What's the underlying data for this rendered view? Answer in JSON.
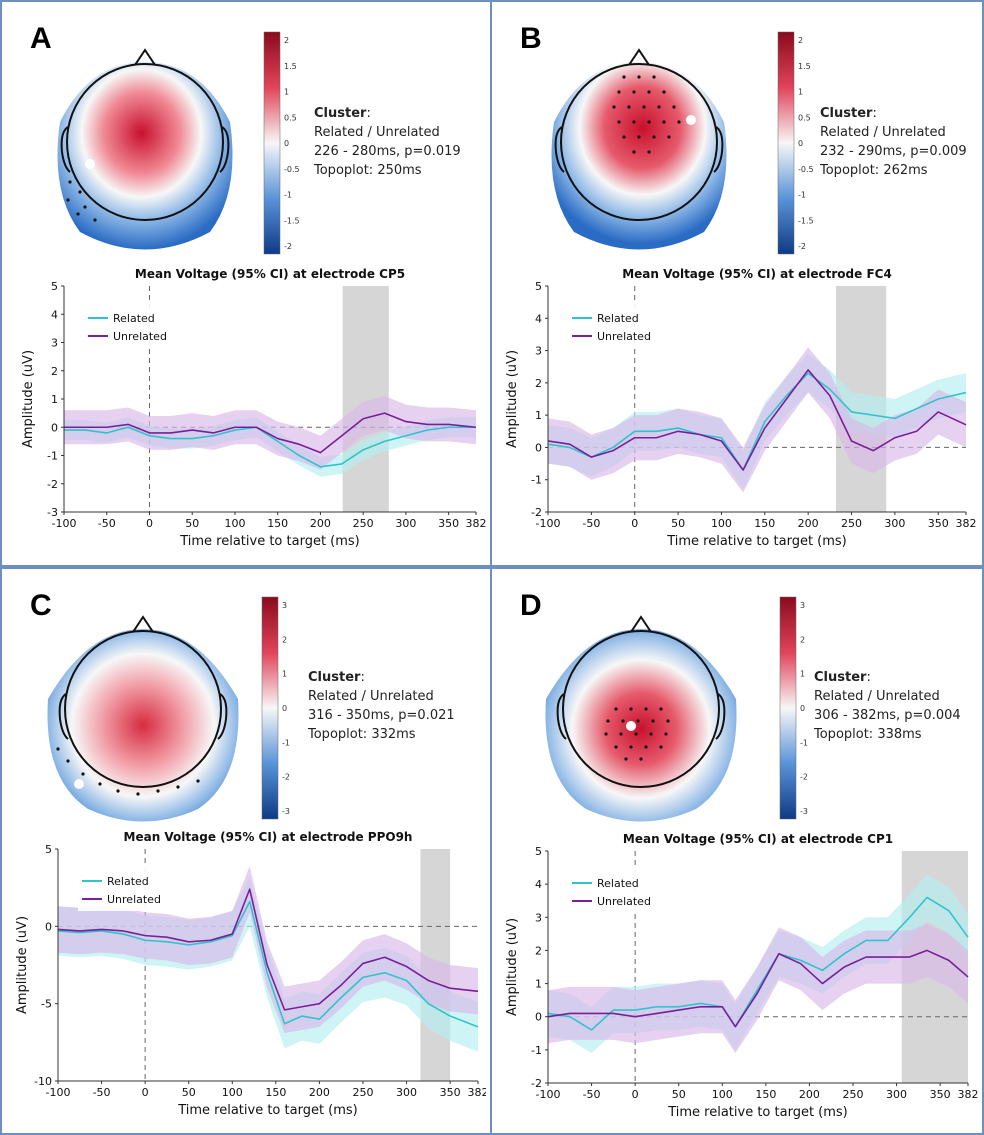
{
  "colors": {
    "related": "#2fc4cc",
    "unrelated": "#7a1f9a",
    "related_ci": "#b6eef0",
    "unrelated_ci": "#d9b8e8",
    "cluster_window": "#d6d6d6",
    "panel_border": "#6b8fc0"
  },
  "panels": [
    {
      "letter": "A",
      "cluster": {
        "title": "Cluster",
        "colon": ":",
        "condition": "Related / Unrelated",
        "window": "226 - 280ms, p=0.019",
        "topoplot": "Topoplot: 250ms"
      },
      "colorbar_ticks": [
        "2",
        "1.5",
        "1",
        "0.5",
        "0",
        "-0.5",
        "-1",
        "-1.5",
        "-2"
      ],
      "chart_data": {
        "type": "line",
        "title": "Mean Voltage (95% CI) at electrode CP5",
        "xlabel": "Time relative to target (ms)",
        "ylabel": "Amplitude (uV)",
        "xlim": [
          -100,
          382
        ],
        "ylim": [
          -3,
          5
        ],
        "xticks": [
          "-100",
          "-50",
          "0",
          "50",
          "100",
          "150",
          "200",
          "250",
          "300",
          "350",
          "382"
        ],
        "yticks": [
          "5",
          "4",
          "3",
          "2",
          "1",
          "0",
          "-1",
          "-2",
          "-3"
        ],
        "shaded_window": [
          226,
          280
        ],
        "legend_position": "top-left",
        "x": [
          -100,
          -75,
          -50,
          -25,
          0,
          25,
          50,
          75,
          100,
          125,
          150,
          175,
          200,
          225,
          250,
          275,
          300,
          325,
          350,
          382
        ],
        "series": [
          {
            "name": "Related",
            "values": [
              -0.1,
              -0.1,
              -0.2,
              0.0,
              -0.3,
              -0.4,
              -0.4,
              -0.3,
              -0.1,
              0.0,
              -0.5,
              -1.0,
              -1.4,
              -1.3,
              -0.8,
              -0.5,
              -0.3,
              -0.1,
              0.0,
              0.0
            ],
            "ci": 0.35
          },
          {
            "name": "Unrelated",
            "values": [
              0.0,
              0.0,
              0.0,
              0.1,
              -0.2,
              -0.2,
              -0.1,
              -0.2,
              0.0,
              0.0,
              -0.4,
              -0.6,
              -0.9,
              -0.3,
              0.3,
              0.5,
              0.2,
              0.1,
              0.1,
              0.0
            ],
            "ci": 0.6
          }
        ]
      }
    },
    {
      "letter": "B",
      "cluster": {
        "title": "Cluster",
        "colon": ":",
        "condition": "Related / Unrelated",
        "window": "232 - 290ms, p=0.009",
        "topoplot": "Topoplot: 262ms"
      },
      "colorbar_ticks": [
        "2",
        "1.5",
        "1",
        "0.5",
        "0",
        "-0.5",
        "-1",
        "-1.5",
        "-2"
      ],
      "chart_data": {
        "type": "line",
        "title": "Mean Voltage (95% CI) at electrode FC4",
        "xlabel": "Time relative to target (ms)",
        "ylabel": "Amplitude (uV)",
        "xlim": [
          -100,
          382
        ],
        "ylim": [
          -2,
          5
        ],
        "xticks": [
          "-100",
          "-50",
          "0",
          "50",
          "100",
          "150",
          "200",
          "250",
          "300",
          "350",
          "382"
        ],
        "yticks": [
          "5",
          "4",
          "3",
          "2",
          "1",
          "0",
          "-1",
          "-2"
        ],
        "shaded_window": [
          232,
          290
        ],
        "legend_position": "top-left",
        "x": [
          -100,
          -75,
          -50,
          -25,
          0,
          25,
          50,
          75,
          100,
          125,
          150,
          175,
          200,
          225,
          250,
          275,
          300,
          325,
          350,
          382
        ],
        "series": [
          {
            "name": "Related",
            "values": [
              0.1,
              0.0,
              -0.3,
              0.0,
              0.5,
              0.5,
              0.6,
              0.4,
              0.3,
              -0.7,
              0.8,
              1.6,
              2.3,
              1.8,
              1.1,
              1.0,
              0.9,
              1.2,
              1.5,
              1.7
            ],
            "ci": 0.6
          },
          {
            "name": "Unrelated",
            "values": [
              0.2,
              0.1,
              -0.3,
              -0.1,
              0.3,
              0.3,
              0.5,
              0.4,
              0.2,
              -0.7,
              0.6,
              1.5,
              2.4,
              1.6,
              0.2,
              -0.1,
              0.3,
              0.5,
              1.1,
              0.7
            ],
            "ci": 0.7
          }
        ]
      }
    },
    {
      "letter": "C",
      "cluster": {
        "title": "Cluster",
        "colon": ":",
        "condition": "Related / Unrelated",
        "window": "316 - 350ms, p=0.021",
        "topoplot": "Topoplot: 332ms"
      },
      "colorbar_ticks": [
        "3",
        "2",
        "1",
        "0",
        "-1",
        "-2",
        "-3"
      ],
      "chart_data": {
        "type": "line",
        "title": "Mean Voltage (95% CI) at electrode PPO9h",
        "xlabel": "Time relative to target (ms)",
        "ylabel": "Amplitude (uV)",
        "xlim": [
          -100,
          382
        ],
        "ylim": [
          -10,
          5
        ],
        "xticks": [
          "-100",
          "-50",
          "0",
          "50",
          "100",
          "150",
          "200",
          "250",
          "300",
          "350",
          "382"
        ],
        "yticks": [
          "5",
          "0",
          "-5",
          "-10"
        ],
        "shaded_window": [
          316,
          350
        ],
        "legend_position": "top-left",
        "x": [
          -100,
          -75,
          -50,
          -25,
          0,
          25,
          50,
          75,
          100,
          120,
          140,
          160,
          180,
          200,
          225,
          250,
          275,
          300,
          325,
          350,
          382
        ],
        "series": [
          {
            "name": "Related",
            "values": [
              -0.3,
              -0.4,
              -0.3,
              -0.5,
              -0.9,
              -1.0,
              -1.2,
              -1.0,
              -0.6,
              1.6,
              -3.0,
              -6.3,
              -5.8,
              -6.0,
              -4.6,
              -3.3,
              -3.0,
              -3.5,
              -5.0,
              -5.8,
              -6.5
            ],
            "ci": 1.6
          },
          {
            "name": "Unrelated",
            "values": [
              -0.2,
              -0.3,
              -0.2,
              -0.3,
              -0.6,
              -0.7,
              -1.0,
              -0.9,
              -0.5,
              2.4,
              -2.5,
              -5.4,
              -5.2,
              -5.0,
              -3.8,
              -2.4,
              -2.0,
              -2.6,
              -3.5,
              -4.0,
              -4.2
            ],
            "ci": 1.5
          }
        ]
      }
    },
    {
      "letter": "D",
      "cluster": {
        "title": "Cluster",
        "colon": ":",
        "condition": "Related / Unrelated",
        "window": "306 - 382ms, p=0.004",
        "topoplot": "Topoplot: 338ms"
      },
      "colorbar_ticks": [
        "3",
        "2",
        "1",
        "0",
        "-1",
        "-2",
        "-3"
      ],
      "chart_data": {
        "type": "line",
        "title": "Mean Voltage (95% CI) at electrode CP1",
        "xlabel": "Time relative to target (ms)",
        "ylabel": "Amplitude (uV)",
        "xlim": [
          -100,
          382
        ],
        "ylim": [
          -2,
          5
        ],
        "xticks": [
          "-100",
          "-50",
          "0",
          "50",
          "100",
          "150",
          "200",
          "250",
          "300",
          "350",
          "382"
        ],
        "yticks": [
          "5",
          "4",
          "3",
          "2",
          "1",
          "0",
          "-1",
          "-2"
        ],
        "shaded_window": [
          306,
          382
        ],
        "legend_position": "top-left",
        "x": [
          -100,
          -75,
          -50,
          -25,
          0,
          25,
          50,
          75,
          100,
          115,
          140,
          165,
          190,
          215,
          240,
          265,
          290,
          315,
          335,
          360,
          382
        ],
        "series": [
          {
            "name": "Related",
            "values": [
              0.1,
              0.0,
              -0.4,
              0.2,
              0.2,
              0.3,
              0.3,
              0.4,
              0.3,
              -0.3,
              0.8,
              1.9,
              1.7,
              1.4,
              1.9,
              2.3,
              2.3,
              3.0,
              3.6,
              3.2,
              2.4
            ],
            "ci": 0.7
          },
          {
            "name": "Unrelated",
            "values": [
              0.0,
              0.1,
              0.1,
              0.1,
              0.0,
              0.1,
              0.2,
              0.3,
              0.3,
              -0.3,
              0.7,
              1.9,
              1.6,
              1.0,
              1.5,
              1.8,
              1.8,
              1.8,
              2.0,
              1.7,
              1.2
            ],
            "ci": 0.8
          }
        ]
      }
    }
  ]
}
